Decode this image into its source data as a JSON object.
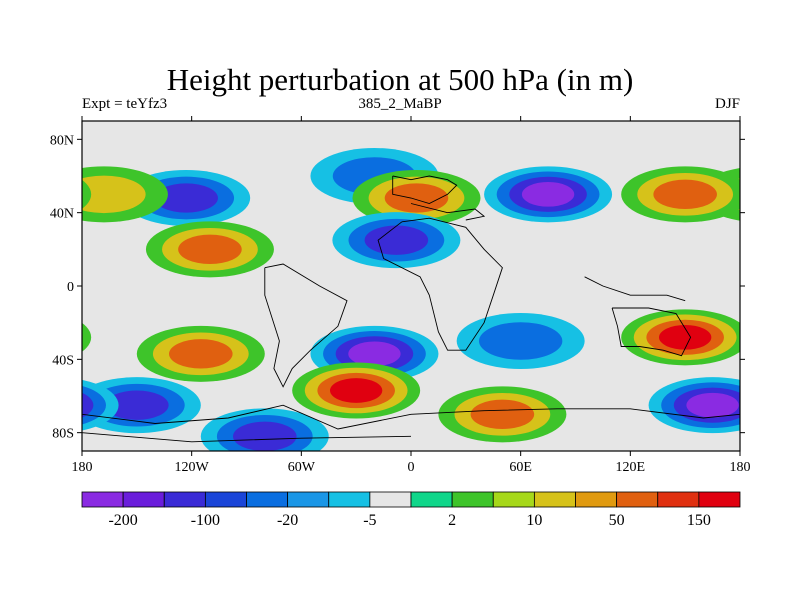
{
  "title": "Height perturbation at 500 hPa (in m)",
  "left_label": "Expt = teYfz3",
  "center_label": "385_2_MaBP",
  "right_label": "DJF",
  "x_axis": {
    "ticks": [
      {
        "lon": -180,
        "label": "180"
      },
      {
        "lon": -120,
        "label": "120W"
      },
      {
        "lon": -60,
        "label": "60W"
      },
      {
        "lon": 0,
        "label": "0"
      },
      {
        "lon": 60,
        "label": "60E"
      },
      {
        "lon": 120,
        "label": "120E"
      },
      {
        "lon": 180,
        "label": "180"
      }
    ],
    "range": [
      -180,
      180
    ]
  },
  "y_axis": {
    "ticks": [
      {
        "lat": 80,
        "label": "80N"
      },
      {
        "lat": 40,
        "label": "40N"
      },
      {
        "lat": 0,
        "label": "0"
      },
      {
        "lat": -40,
        "label": "40S"
      },
      {
        "lat": -80,
        "label": "80S"
      }
    ],
    "range": [
      -90,
      90
    ]
  },
  "colorbar": {
    "colors": [
      "#8a2be2",
      "#6a1ddb",
      "#3a2bd6",
      "#1a45d8",
      "#0a6ee0",
      "#1a96e6",
      "#16c0e4",
      "#e6e6e6",
      "#10d68a",
      "#3ec42a",
      "#a6d81a",
      "#d6c21a",
      "#e09a10",
      "#e06010",
      "#e03010",
      "#e00010"
    ],
    "labels": [
      {
        "boundary": 1,
        "text": "-200"
      },
      {
        "boundary": 3,
        "text": "-100"
      },
      {
        "boundary": 5,
        "text": "-20"
      },
      {
        "boundary": 7,
        "text": "-5"
      },
      {
        "boundary": 9,
        "text": "2"
      },
      {
        "boundary": 11,
        "text": "10"
      },
      {
        "boundary": 13,
        "text": "50"
      },
      {
        "boundary": 15,
        "text": "150"
      }
    ]
  },
  "chart_data": {
    "type": "heatmap",
    "title": "Height perturbation at 500 hPa (in m)",
    "subtitle": "385_2_MaBP",
    "units": "m",
    "season": "DJF",
    "experiment": "teYfz3",
    "xlim": [
      -180,
      180
    ],
    "ylim": [
      -90,
      90
    ],
    "contour_levels": [
      -200,
      -100,
      -20,
      -5,
      2,
      10,
      50,
      150
    ],
    "features": [
      {
        "lon": -123,
        "lat": 48,
        "value": -100
      },
      {
        "lon": -168,
        "lat": 50,
        "value": 40
      },
      {
        "lon": -110,
        "lat": 20,
        "value": 50
      },
      {
        "lon": -20,
        "lat": 60,
        "value": -20
      },
      {
        "lon": 3,
        "lat": 48,
        "value": 50
      },
      {
        "lon": 75,
        "lat": 50,
        "value": -200
      },
      {
        "lon": 150,
        "lat": 50,
        "value": 50
      },
      {
        "lon": -8,
        "lat": 25,
        "value": -100
      },
      {
        "lon": -115,
        "lat": -37,
        "value": 50
      },
      {
        "lon": -20,
        "lat": -37,
        "value": -200
      },
      {
        "lon": 60,
        "lat": -30,
        "value": -20
      },
      {
        "lon": 150,
        "lat": -28,
        "value": 150
      },
      {
        "lon": -150,
        "lat": -65,
        "value": -100
      },
      {
        "lon": -30,
        "lat": -57,
        "value": 150
      },
      {
        "lon": 50,
        "lat": -70,
        "value": 50
      },
      {
        "lon": 165,
        "lat": -65,
        "value": -200
      },
      {
        "lon": -80,
        "lat": -82,
        "value": -100
      }
    ]
  }
}
